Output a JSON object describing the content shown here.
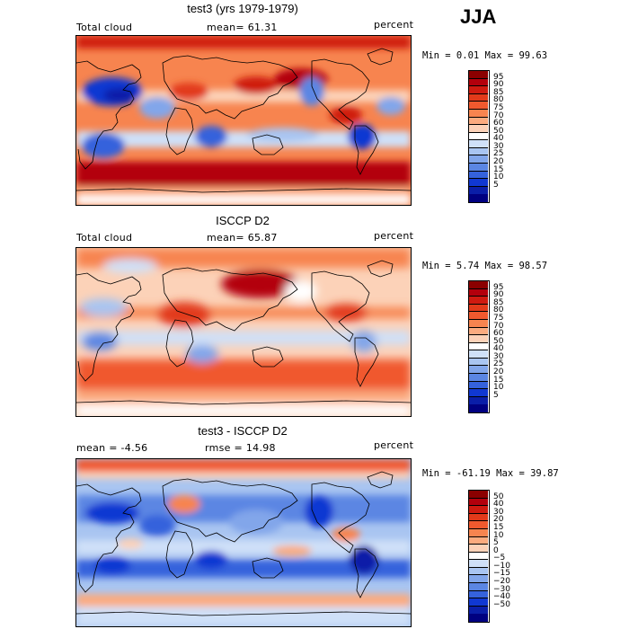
{
  "season": "JJA",
  "panels": [
    {
      "title": "test3 (yrs 1979-1979)",
      "left_label": "Total cloud",
      "center_label": "mean=  61.31",
      "right_label": "percent",
      "minmax": "Min =   0.01 Max =  99.63",
      "colorbar": {
        "labels": [
          "95",
          "90",
          "85",
          "80",
          "75",
          "70",
          "60",
          "50",
          "40",
          "30",
          "25",
          "20",
          "15",
          "10",
          "5"
        ],
        "colors": [
          "#8b0000",
          "#b3000c",
          "#cf1a10",
          "#e23a1a",
          "#f0592e",
          "#f7844f",
          "#fbab7f",
          "#fcd2b8",
          "#ffffff",
          "#cfe0f8",
          "#a9c5f1",
          "#82a6ea",
          "#5b86e3",
          "#3562dc",
          "#1038d2",
          "#0a1ea8",
          "#000080"
        ]
      }
    },
    {
      "title": "ISCCP D2",
      "left_label": "Total cloud",
      "center_label": "mean=  65.87",
      "right_label": "percent",
      "minmax": "Min =   5.74 Max =  98.57",
      "colorbar": {
        "labels": [
          "95",
          "90",
          "85",
          "80",
          "75",
          "70",
          "60",
          "50",
          "40",
          "30",
          "25",
          "20",
          "15",
          "10",
          "5"
        ],
        "colors": [
          "#8b0000",
          "#b3000c",
          "#cf1a10",
          "#e23a1a",
          "#f0592e",
          "#f7844f",
          "#fbab7f",
          "#fcd2b8",
          "#ffffff",
          "#cfe0f8",
          "#a9c5f1",
          "#82a6ea",
          "#5b86e3",
          "#3562dc",
          "#1038d2",
          "#0a1ea8",
          "#000080"
        ]
      }
    },
    {
      "title": "test3 - ISCCP D2",
      "left_label": "mean =   -4.56",
      "center_label": "rmse =  14.98",
      "right_label": "percent",
      "minmax": "Min = -61.19 Max =  39.87",
      "colorbar": {
        "labels": [
          "50",
          "40",
          "30",
          "20",
          "15",
          "10",
          "5",
          "0",
          "−5",
          "−10",
          "−15",
          "−20",
          "−30",
          "−40",
          "−50"
        ],
        "colors": [
          "#8b0000",
          "#b3000c",
          "#cf1a10",
          "#e23a1a",
          "#f0592e",
          "#f7844f",
          "#fbab7f",
          "#fcd2b8",
          "#ffffff",
          "#cfe0f8",
          "#a9c5f1",
          "#82a6ea",
          "#5b86e3",
          "#3562dc",
          "#1038d2",
          "#0a1ea8",
          "#000080"
        ]
      }
    }
  ]
}
